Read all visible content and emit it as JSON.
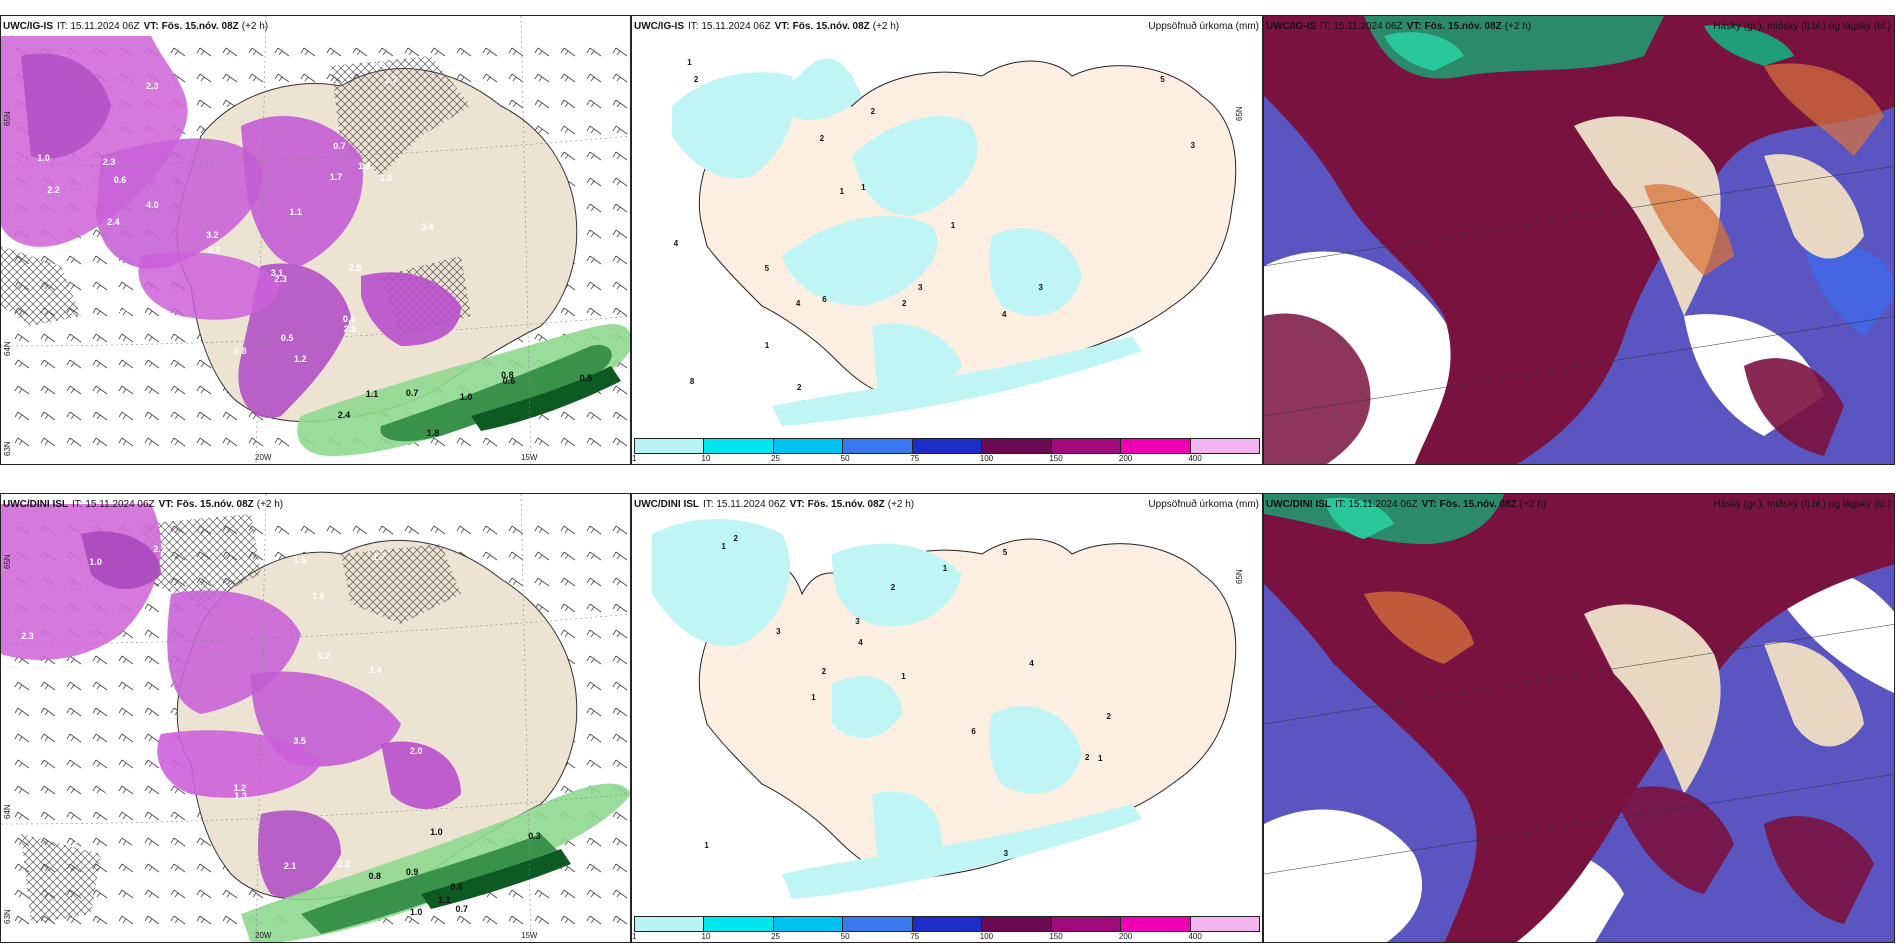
{
  "header": {
    "it_label": "IT:",
    "init_time": "15.11.2024 06Z",
    "vt_label": "VT:",
    "valid_time": "Fös. 15.nóv. 08Z",
    "lead": "(+2 h)"
  },
  "rows": [
    {
      "model": "UWC/IG-IS",
      "lon_labels": [
        "20W",
        "15W"
      ],
      "lat_labels": [
        "65N",
        "64N",
        "63N"
      ],
      "wind_values": [
        "1.2",
        "2.3",
        "2.4",
        "2.3",
        "1.8",
        "0.5",
        "3.4",
        "4.0",
        "2.7",
        "2.1",
        "1.9",
        "1.0",
        "3.2",
        "3.1",
        "1.7",
        "0.8",
        "2.2",
        "2.7",
        "2.5",
        "1.5",
        "0.5",
        "2.3",
        "4.0",
        "2.8",
        "1.1",
        "0.7",
        "2.4",
        "0.6",
        "0.8"
      ],
      "green_values": [
        "0.7",
        "2.4",
        "1.8",
        "0.6",
        "0.8",
        "0.5",
        "1.1",
        "1.0"
      ]
    },
    {
      "model": "UWC/DINI ISL",
      "lon_labels": [
        "20W",
        "15W"
      ],
      "lat_labels": [
        "65N",
        "64N",
        "63N"
      ],
      "wind_values": [
        "2.0",
        "2.2",
        "1.3",
        "1.8",
        "1.2",
        "3.3",
        "2.7",
        "1.6",
        "2.1",
        "1.4",
        "3.5",
        "1.7",
        "2.3",
        "1.2",
        "1.5",
        "1.0",
        "1.9",
        "0.7",
        "1.6"
      ],
      "green_values": [
        "1.0",
        "0.9",
        "0.7",
        "1.1",
        "0.8",
        "0.6",
        "1.0",
        "0.3"
      ]
    }
  ],
  "precip_panel": {
    "title": "Uppsöfnuð úrkoma (mm)",
    "lat_label": "65N",
    "colorbar_ticks": [
      "1",
      "10",
      "25",
      "50",
      "75",
      "100",
      "150",
      "200",
      "400"
    ],
    "colorbar_colors": [
      "#b9f4f4",
      "#00e6ee",
      "#00c2f0",
      "#3a78f0",
      "#1d2ec8",
      "#6a0a52",
      "#a00a7a",
      "#f000b4",
      "#f4b4f0"
    ],
    "top_values": [
      "2",
      "1",
      "4",
      "5",
      "3",
      "4",
      "2",
      "6",
      "8",
      "3",
      "4",
      "1",
      "2",
      "5",
      "3",
      "1",
      "2",
      "1",
      "2",
      "1"
    ],
    "bottom_values": [
      "1",
      "6",
      "4",
      "2",
      "5",
      "3",
      "1",
      "4",
      "3",
      "2",
      "1",
      "2",
      "3",
      "1",
      "2",
      "1",
      "2",
      "1"
    ]
  },
  "cloud_panel": {
    "title": "Háský (gr.), miðský (fj.bl.) og lágský (bl.)"
  }
}
